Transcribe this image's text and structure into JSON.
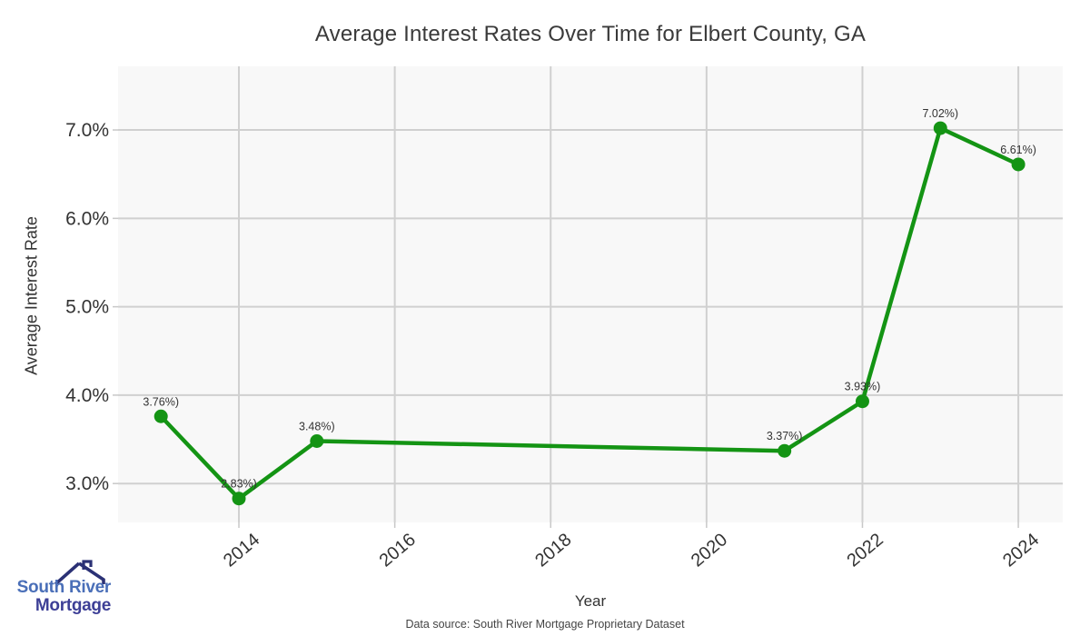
{
  "title": "Average Interest Rates Over Time for Elbert County, GA",
  "chart_data": {
    "type": "line",
    "x": [
      2013,
      2014,
      2015,
      2021,
      2022,
      2023,
      2024
    ],
    "values": [
      3.76,
      2.83,
      3.48,
      3.37,
      3.93,
      7.02,
      6.61
    ],
    "point_labels": [
      "3.76%)",
      "2.83%)",
      "3.48%)",
      "3.37%)",
      "3.93%)",
      "7.02%)",
      "6.61%)"
    ],
    "title": "Average Interest Rates Over Time for Elbert County, GA",
    "xlabel": "Year",
    "ylabel": "Average Interest Rate",
    "x_ticks": [
      2014,
      2016,
      2018,
      2020,
      2022,
      2024
    ],
    "y_ticks": [
      3,
      4,
      5,
      6,
      7
    ],
    "y_tick_labels": [
      "3.0%",
      "4.0%",
      "5.0%",
      "6.0%",
      "7.0%"
    ],
    "xlim": [
      2012.45,
      2024.57
    ],
    "ylim": [
      2.56,
      7.72
    ],
    "grid": true,
    "legend": "none",
    "colors": {
      "line": "#149414",
      "marker": "#149414",
      "plot_background": "#f8f8f8",
      "gridline": "#d0d0d0",
      "tick_mark": "#c8c8c8",
      "tick_text": "#333333",
      "point_label_text": "#333333"
    }
  },
  "footer": {
    "data_source": "Data source: South River Mortgage Proprietary Dataset"
  },
  "branding": {
    "line1": "South River",
    "line2": "Mortgage",
    "colors": {
      "line1_text": "#4a6fb8",
      "line2_text": "#3d3f96",
      "roof": "#2b3175"
    }
  }
}
